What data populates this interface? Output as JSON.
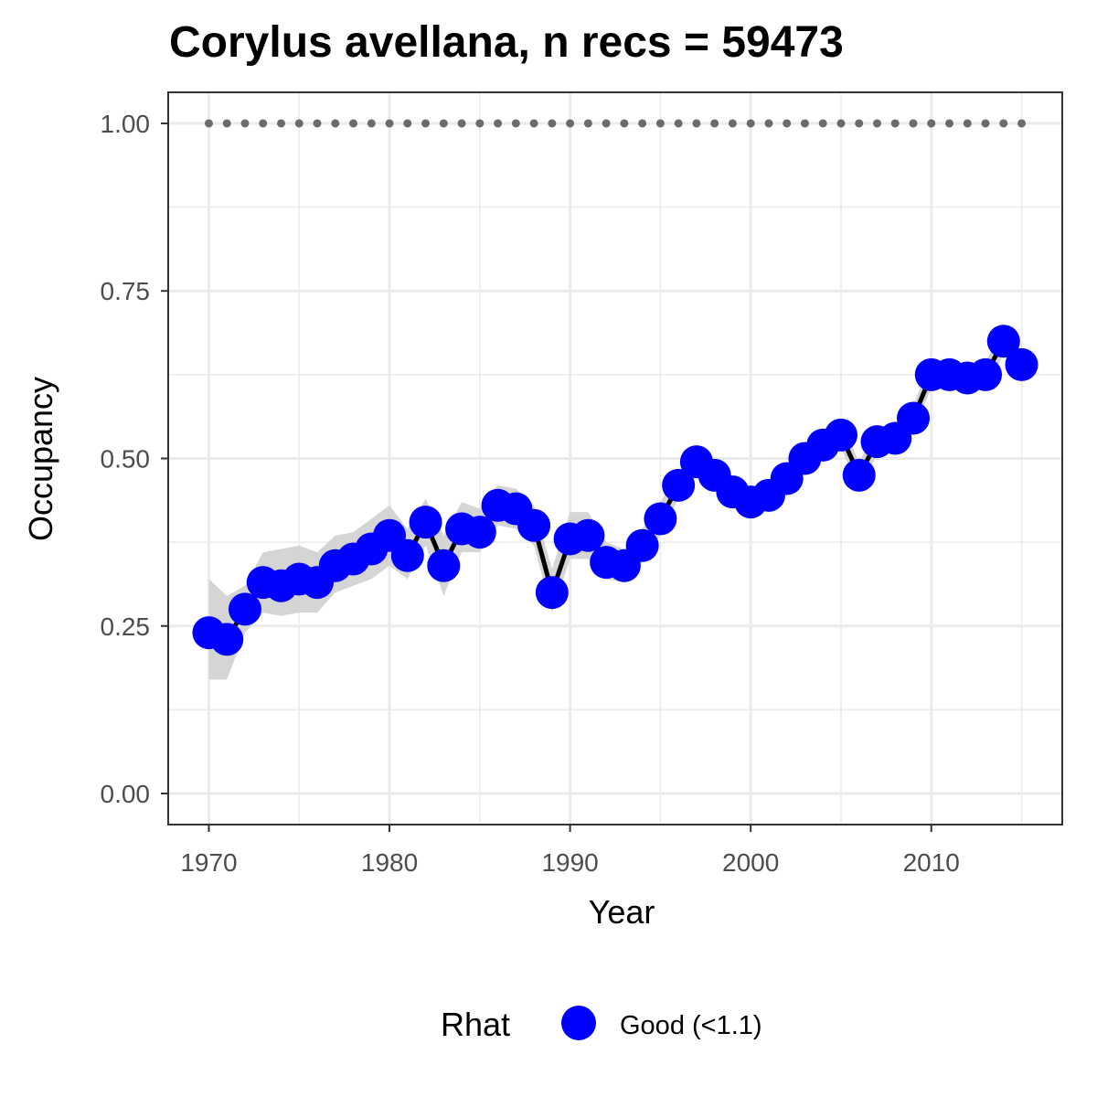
{
  "chart_data": {
    "type": "line",
    "title": "Corylus avellana, n recs = 59473",
    "xlabel": "Year",
    "ylabel": "Occupancy",
    "xlim": [
      1967.8,
      2017.2
    ],
    "ylim": [
      -0.045,
      1.045
    ],
    "x_ticks": [
      1970,
      1980,
      1990,
      2000,
      2010
    ],
    "x_tick_labels": [
      "1970",
      "1980",
      "1990",
      "2000",
      "2010"
    ],
    "y_ticks": [
      0,
      0.25,
      0.5,
      0.75,
      1.0
    ],
    "y_tick_labels": [
      "0.00",
      "0.25",
      "0.50",
      "0.75",
      "1.00"
    ],
    "grid": true,
    "x": [
      1970,
      1971,
      1972,
      1973,
      1974,
      1975,
      1976,
      1977,
      1978,
      1979,
      1980,
      1981,
      1982,
      1983,
      1984,
      1985,
      1986,
      1987,
      1988,
      1989,
      1990,
      1991,
      1992,
      1993,
      1994,
      1995,
      1996,
      1997,
      1998,
      1999,
      2000,
      2001,
      2002,
      2003,
      2004,
      2005,
      2006,
      2007,
      2008,
      2009,
      2010,
      2011,
      2012,
      2013,
      2014,
      2015
    ],
    "series": [
      {
        "values": [
          0.24,
          0.23,
          0.275,
          0.315,
          0.31,
          0.32,
          0.315,
          0.34,
          0.35,
          0.365,
          0.385,
          0.355,
          0.405,
          0.34,
          0.395,
          0.39,
          0.43,
          0.425,
          0.4,
          0.3,
          0.38,
          0.385,
          0.345,
          0.34,
          0.37,
          0.41,
          0.46,
          0.495,
          0.475,
          0.45,
          0.435,
          0.445,
          0.47,
          0.5,
          0.52,
          0.535,
          0.475,
          0.525,
          0.53,
          0.56,
          0.625,
          0.625,
          0.62,
          0.625,
          0.675,
          0.64
        ],
        "lower": [
          0.17,
          0.17,
          0.24,
          0.27,
          0.265,
          0.27,
          0.27,
          0.3,
          0.31,
          0.32,
          0.34,
          0.32,
          0.37,
          0.295,
          0.36,
          0.36,
          0.4,
          0.395,
          0.37,
          0.27,
          0.35,
          0.35,
          0.32,
          0.315,
          0.345,
          0.385,
          0.44,
          0.475,
          0.455,
          0.43,
          0.415,
          0.425,
          0.45,
          0.48,
          0.5,
          0.515,
          0.455,
          0.505,
          0.51,
          0.54,
          0.605,
          0.605,
          0.6,
          0.605,
          0.655,
          0.62
        ],
        "upper": [
          0.32,
          0.295,
          0.31,
          0.36,
          0.365,
          0.37,
          0.36,
          0.385,
          0.39,
          0.41,
          0.43,
          0.395,
          0.44,
          0.385,
          0.435,
          0.425,
          0.46,
          0.455,
          0.43,
          0.335,
          0.42,
          0.42,
          0.375,
          0.365,
          0.395,
          0.435,
          0.48,
          0.515,
          0.495,
          0.47,
          0.455,
          0.465,
          0.49,
          0.52,
          0.54,
          0.555,
          0.495,
          0.545,
          0.55,
          0.58,
          0.645,
          0.645,
          0.64,
          0.645,
          0.695,
          0.66
        ]
      }
    ],
    "reference_line": {
      "y": 1.0,
      "style": "dotted"
    },
    "legend": {
      "title": "Rhat",
      "label": "Good (<1.1)",
      "placement": "bottom"
    },
    "colors": {
      "point": "#0000ff",
      "line": "#000000",
      "ribbon": "#d3d3d3",
      "reference": "#6b6b6b",
      "grid": "#ebebeb",
      "panel_border": "#333333",
      "tick_text": "#4d4d4d"
    }
  }
}
